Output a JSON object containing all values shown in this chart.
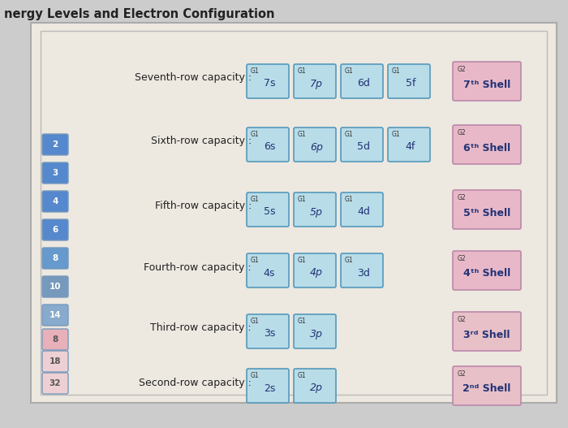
{
  "title": "nergy Levels and Electron Configuration",
  "bg_color": "#cccccc",
  "main_bg": "#ede8e0",
  "rows": [
    {
      "label": "Seventh-row capacity :",
      "subshells": [
        {
          "tag": "G1",
          "name": "7s"
        },
        {
          "tag": "G1",
          "name": "7p"
        },
        {
          "tag": "G1",
          "name": "6d"
        },
        {
          "tag": "G1",
          "name": "5f"
        }
      ],
      "shell_tag": "G2",
      "shell_name": "7ᵗʰ Shell",
      "shell_color": "#e8b8c8"
    },
    {
      "label": "Sixth-row capacity :",
      "subshells": [
        {
          "tag": "G1",
          "name": "6s"
        },
        {
          "tag": "G1",
          "name": "6p"
        },
        {
          "tag": "G1",
          "name": "5d"
        },
        {
          "tag": "G1",
          "name": "4f"
        }
      ],
      "shell_tag": "G2",
      "shell_name": "6ᵗʰ Shell",
      "shell_color": "#e8b8c8"
    },
    {
      "label": "Fifth-row capacity :",
      "subshells": [
        {
          "tag": "G1",
          "name": "5s"
        },
        {
          "tag": "G1",
          "name": "5p"
        },
        {
          "tag": "G1",
          "name": "4d"
        }
      ],
      "shell_tag": "G2",
      "shell_name": "5ᵗʰ Shell",
      "shell_color": "#e8b8c8"
    },
    {
      "label": "Fourth-row capacity :",
      "subshells": [
        {
          "tag": "G1",
          "name": "4s"
        },
        {
          "tag": "G1",
          "name": "4p"
        },
        {
          "tag": "G1",
          "name": "3d"
        }
      ],
      "shell_tag": "G2",
      "shell_name": "4ᵗʰ Shell",
      "shell_color": "#e8b8c8"
    },
    {
      "label": "Third-row capacity :",
      "subshells": [
        {
          "tag": "G1",
          "name": "3s"
        },
        {
          "tag": "G1",
          "name": "3p"
        }
      ],
      "shell_tag": "G2",
      "shell_name": "3ʳᵈ Shell",
      "shell_color": "#e8c0c8"
    },
    {
      "label": "Second-row capacity :",
      "subshells": [
        {
          "tag": "G1",
          "name": "2s"
        },
        {
          "tag": "G1",
          "name": "2p"
        }
      ],
      "shell_tag": "G2",
      "shell_name": "2ⁿᵈ Shell",
      "shell_color": "#e8c0c8"
    }
  ],
  "subshell_color": "#b8dce8",
  "subshell_border": "#5599bb",
  "shell_border": "#bb88aa",
  "side_numbers": [
    {
      "val": "2",
      "color": "#5588cc",
      "text_color": "#ffffff"
    },
    {
      "val": "3",
      "color": "#5588cc",
      "text_color": "#ffffff"
    },
    {
      "val": "4",
      "color": "#5588cc",
      "text_color": "#ffffff"
    },
    {
      "val": "6",
      "color": "#5588cc",
      "text_color": "#ffffff"
    },
    {
      "val": "8",
      "color": "#6699cc",
      "text_color": "#ffffff"
    },
    {
      "val": "10",
      "color": "#7799bb",
      "text_color": "#ffffff"
    },
    {
      "val": "14",
      "color": "#88aacc",
      "text_color": "#ffffff"
    },
    {
      "val": "8",
      "color": "#e8b0b8",
      "text_color": "#555555"
    },
    {
      "val": "18",
      "color": "#eed0d4",
      "text_color": "#555555"
    },
    {
      "val": "32",
      "color": "#eed0d4",
      "text_color": "#555555"
    }
  ]
}
